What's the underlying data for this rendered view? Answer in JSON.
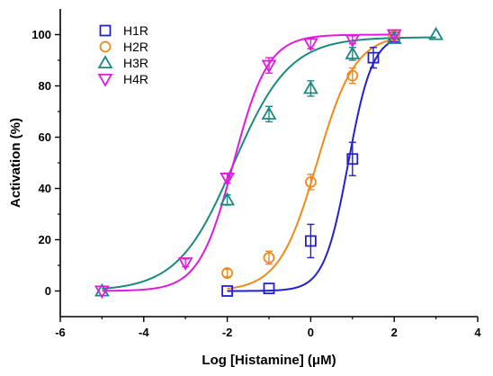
{
  "chart_data": {
    "type": "scatter",
    "title": "",
    "xlabel": "Log [Histamine] (μM)",
    "ylabel": "Activation (%)",
    "xlim": [
      -6,
      4
    ],
    "ylim": [
      -10,
      110
    ],
    "xticks": [
      -6,
      -4,
      -2,
      0,
      2,
      4
    ],
    "yticks": [
      0,
      20,
      40,
      60,
      80,
      100
    ],
    "legend_position": "top-left",
    "grid": false,
    "series": [
      {
        "name": "H1R",
        "color": "#2222cc",
        "marker": "square",
        "x": [
          -2,
          -1,
          0,
          1,
          1.5,
          2
        ],
        "y": [
          0,
          1,
          19.5,
          51.5,
          91,
          99
        ],
        "error": [
          0,
          0,
          6.5,
          6.5,
          4,
          2
        ],
        "fit": {
          "bottom": 0,
          "top": 100,
          "logEC50": 0.9,
          "hill": 1.5
        }
      },
      {
        "name": "H2R",
        "color": "#f08a1a",
        "marker": "circle",
        "x": [
          -2,
          -1,
          0,
          1,
          2
        ],
        "y": [
          7,
          13,
          42.5,
          84,
          99.5
        ],
        "error": [
          1.5,
          2.5,
          3,
          3,
          1.5
        ],
        "fit": {
          "bottom": 0,
          "top": 100,
          "logEC50": 0.15,
          "hill": 0.95
        }
      },
      {
        "name": "H3R",
        "color": "#1a8a80",
        "marker": "triangle-up",
        "x": [
          -5,
          -2,
          -1,
          0,
          1,
          2,
          3
        ],
        "y": [
          0,
          35.5,
          69,
          79,
          92.5,
          98.5,
          100
        ],
        "error": [
          0,
          2,
          3,
          3,
          2.5,
          1.5,
          0
        ],
        "fit": {
          "bottom": 0,
          "top": 99,
          "logEC50": -1.85,
          "hill": 0.65
        }
      },
      {
        "name": "H4R",
        "color": "#e21ae0",
        "marker": "triangle-down",
        "x": [
          -5,
          -3,
          -2,
          -1,
          0,
          1,
          2
        ],
        "y": [
          0,
          11,
          44,
          88,
          96.5,
          98,
          100
        ],
        "error": [
          0,
          1.5,
          2,
          3,
          2,
          1.5,
          1
        ],
        "fit": {
          "bottom": 0,
          "top": 100,
          "logEC50": -1.85,
          "hill": 1.05
        }
      }
    ]
  }
}
